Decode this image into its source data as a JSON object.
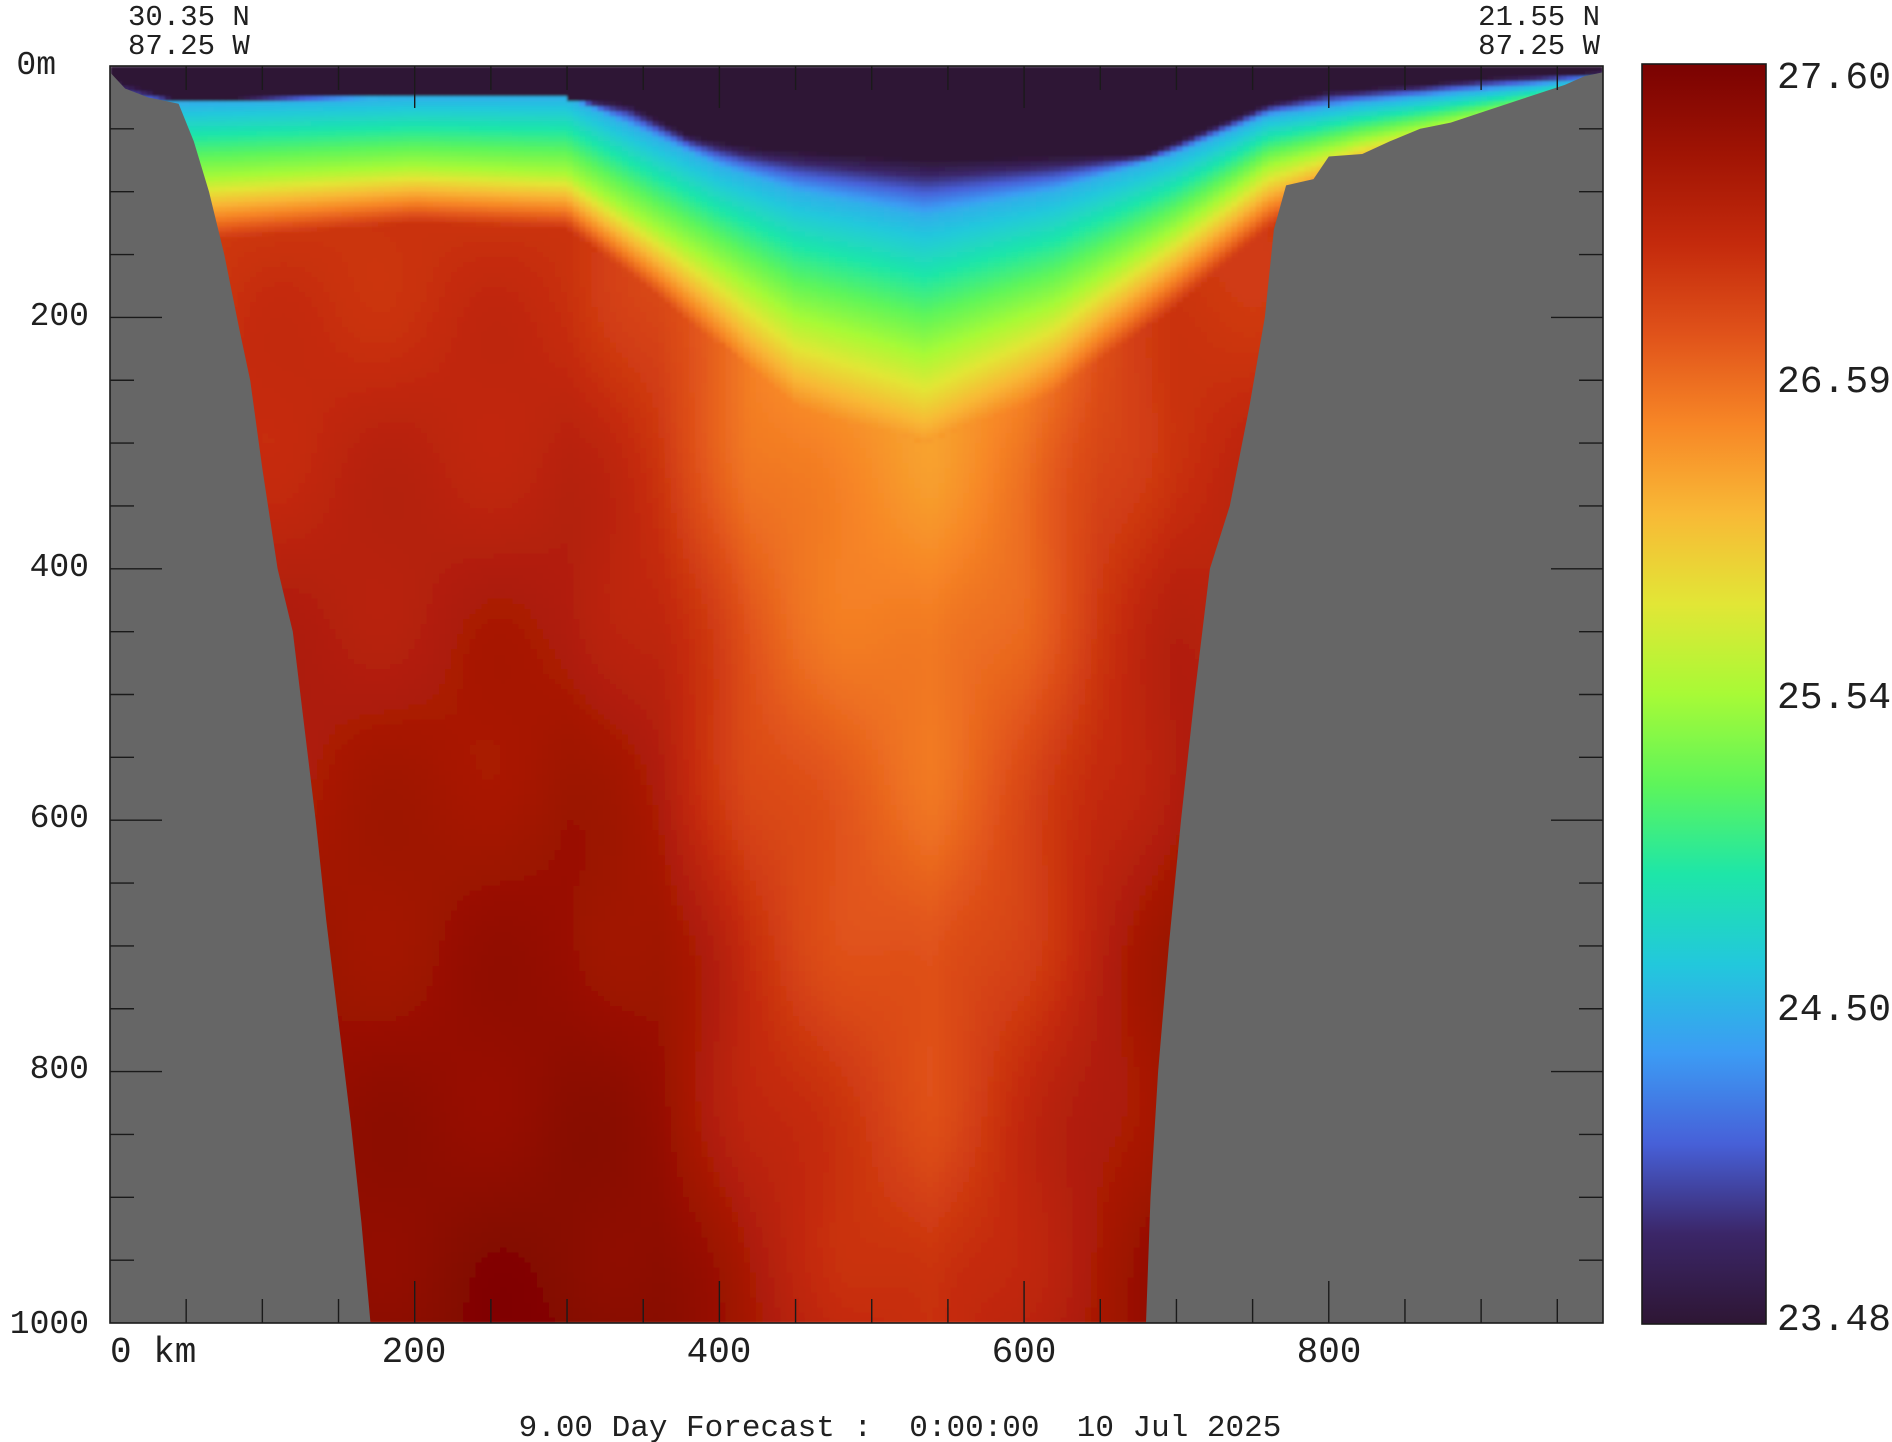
{
  "chart_data": {
    "type": "heatmap",
    "title": "",
    "xlabel": "",
    "ylabel": "",
    "x_unit": "km",
    "y_unit": "m",
    "xlim": [
      0,
      980
    ],
    "ylim": [
      0,
      1000
    ],
    "x_ticks": [
      0,
      200,
      400,
      600,
      800
    ],
    "x_tick_labels": [
      "0 km",
      "200",
      "400",
      "600",
      "800"
    ],
    "y_ticks": [
      0,
      200,
      400,
      600,
      800,
      1000
    ],
    "y_tick_labels": [
      "0m",
      "200",
      "400",
      "600",
      "800",
      "1000"
    ],
    "start_point": {
      "lat": "30.35 N",
      "lon": "87.25 W"
    },
    "end_point": {
      "lat": "21.55 N",
      "lon": "87.25 W"
    },
    "colorbar": {
      "min": 23.48,
      "max": 27.6,
      "tick_labels": [
        "27.60",
        "26.59",
        "25.54",
        "24.50",
        "23.48"
      ],
      "tick_values": [
        27.6,
        26.59,
        25.54,
        24.5,
        23.48
      ]
    },
    "footer": "9.00 Day Forecast :  0:00:00  10 Jul 2025",
    "grid": false,
    "colors": {
      "land": "#666666",
      "scale": [
        "#2e1634",
        "#3b2668",
        "#4760d8",
        "#3c9bf4",
        "#22c8dc",
        "#1ee6a8",
        "#5ef55a",
        "#a8fa36",
        "#e2e636",
        "#f8b936",
        "#f78626",
        "#e0521a",
        "#c42a0c",
        "#a01404",
        "#7a0202"
      ]
    },
    "bathymetry": [
      [
        0,
        5
      ],
      [
        10,
        18
      ],
      [
        25,
        25
      ],
      [
        45,
        30
      ],
      [
        55,
        60
      ],
      [
        65,
        100
      ],
      [
        75,
        150
      ],
      [
        85,
        210
      ],
      [
        92,
        250
      ],
      [
        100,
        320
      ],
      [
        110,
        400
      ],
      [
        120,
        450
      ],
      [
        128,
        530
      ],
      [
        135,
        600
      ],
      [
        142,
        680
      ],
      [
        150,
        760
      ],
      [
        158,
        840
      ],
      [
        165,
        920
      ],
      [
        171,
        1000
      ],
      [
        680,
        1000
      ],
      [
        683,
        900
      ],
      [
        688,
        800
      ],
      [
        695,
        700
      ],
      [
        703,
        600
      ],
      [
        712,
        500
      ],
      [
        722,
        400
      ],
      [
        735,
        350
      ],
      [
        748,
        270
      ],
      [
        758,
        200
      ],
      [
        764,
        130
      ],
      [
        772,
        95
      ],
      [
        790,
        90
      ],
      [
        800,
        72
      ],
      [
        822,
        70
      ],
      [
        840,
        60
      ],
      [
        860,
        50
      ],
      [
        880,
        45
      ],
      [
        905,
        35
      ],
      [
        930,
        25
      ],
      [
        955,
        15
      ],
      [
        968,
        8
      ],
      [
        980,
        5
      ]
    ],
    "surface_depth": [
      [
        0,
        10
      ],
      [
        45,
        28
      ],
      [
        100,
        25
      ],
      [
        200,
        22
      ],
      [
        300,
        26
      ],
      [
        340,
        30
      ],
      [
        380,
        55
      ],
      [
        420,
        65
      ],
      [
        500,
        72
      ],
      [
        540,
        75
      ],
      [
        620,
        72
      ],
      [
        680,
        70
      ],
      [
        720,
        50
      ],
      [
        760,
        30
      ],
      [
        800,
        20
      ],
      [
        860,
        15
      ],
      [
        900,
        10
      ],
      [
        980,
        5
      ]
    ],
    "thermocline": [
      [
        45,
        30,
        90,
        140
      ],
      [
        200,
        25,
        80,
        125
      ],
      [
        300,
        25,
        85,
        130
      ],
      [
        400,
        80,
        160,
        220
      ],
      [
        450,
        100,
        200,
        270
      ],
      [
        535,
        120,
        230,
        300
      ],
      [
        620,
        100,
        190,
        260
      ],
      [
        700,
        70,
        130,
        190
      ],
      [
        760,
        40,
        80,
        130
      ],
      [
        820,
        30,
        60,
        90
      ],
      [
        900,
        20,
        40,
        60
      ],
      [
        980,
        10,
        20,
        30
      ]
    ],
    "deep_profile": [
      [
        45,
        26.9,
        27.25,
        27.55
      ],
      [
        200,
        26.95,
        27.3,
        27.55
      ],
      [
        300,
        26.95,
        27.35,
        27.6
      ],
      [
        360,
        26.8,
        27.3,
        27.6
      ],
      [
        420,
        26.45,
        27.0,
        27.45
      ],
      [
        480,
        26.35,
        26.85,
        27.3
      ],
      [
        540,
        26.3,
        26.75,
        27.2
      ],
      [
        600,
        26.45,
        26.95,
        27.3
      ],
      [
        650,
        26.75,
        27.15,
        27.35
      ],
      [
        700,
        26.9,
        27.3,
        27.5
      ],
      [
        980,
        26.9,
        27.3,
        27.5
      ]
    ]
  }
}
